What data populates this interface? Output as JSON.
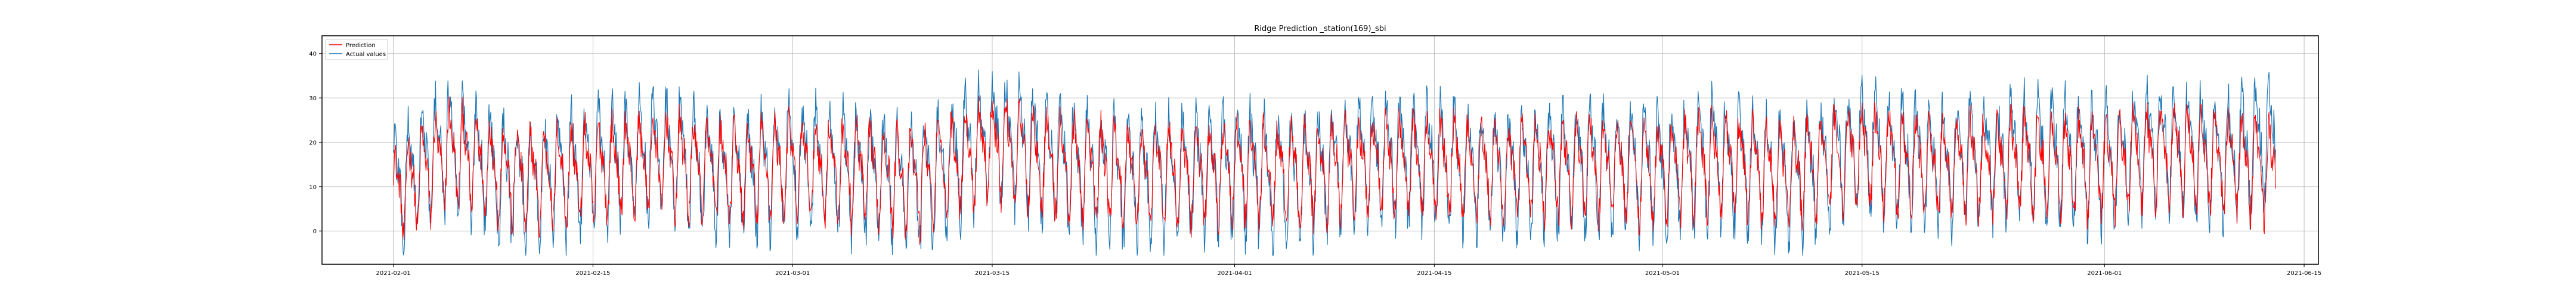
{
  "chart_data": {
    "type": "line",
    "title": "Ridge Prediction _station(169)_sbi",
    "xlabel": "",
    "ylabel": "",
    "x_range": [
      "2021-01-27",
      "2021-06-16"
    ],
    "ylim": [
      -7.5,
      44
    ],
    "x_ticks": [
      "2021-02-01",
      "2021-02-15",
      "2021-03-01",
      "2021-03-15",
      "2021-04-01",
      "2021-04-15",
      "2021-05-01",
      "2021-05-15",
      "2021-06-01",
      "2021-06-15"
    ],
    "y_ticks": [
      0,
      10,
      20,
      30,
      40
    ],
    "grid": true,
    "legend_position": "top-left",
    "series": [
      {
        "name": "Prediction",
        "color": "#ff0000",
        "x": [
          "2021-02-01",
          "2021-02-05",
          "2021-02-10",
          "2021-02-15",
          "2021-02-20",
          "2021-02-25",
          "2021-03-01",
          "2021-03-05",
          "2021-03-10",
          "2021-03-15",
          "2021-03-20",
          "2021-03-25",
          "2021-04-01",
          "2021-04-05",
          "2021-04-10",
          "2021-04-15",
          "2021-04-20",
          "2021-04-25",
          "2021-05-01",
          "2021-05-05",
          "2021-05-10",
          "2021-05-15",
          "2021-05-20",
          "2021-05-25",
          "2021-06-01",
          "2021-06-05",
          "2021-06-10",
          "2021-06-13"
        ],
        "values": [
          8,
          18,
          12,
          14,
          16,
          13,
          15,
          14,
          12,
          20,
          15,
          13,
          14,
          13,
          15,
          16,
          14,
          15,
          14,
          16,
          13,
          18,
          15,
          16,
          15,
          18,
          16,
          14
        ]
      },
      {
        "name": "Actual values",
        "color": "#1f77b4",
        "x": [
          "2021-02-01",
          "2021-02-05",
          "2021-02-10",
          "2021-02-15",
          "2021-02-20",
          "2021-02-25",
          "2021-03-01",
          "2021-03-05",
          "2021-03-10",
          "2021-03-15",
          "2021-03-20",
          "2021-03-25",
          "2021-04-01",
          "2021-04-05",
          "2021-04-10",
          "2021-04-15",
          "2021-04-20",
          "2021-04-25",
          "2021-05-01",
          "2021-05-05",
          "2021-05-10",
          "2021-05-15",
          "2021-05-20",
          "2021-05-25",
          "2021-06-01",
          "2021-06-05",
          "2021-06-10",
          "2021-06-13"
        ],
        "values": [
          10,
          20,
          11,
          15,
          18,
          12,
          16,
          14,
          11,
          22,
          16,
          12,
          15,
          12,
          16,
          17,
          13,
          16,
          14,
          17,
          12,
          20,
          15,
          18,
          16,
          20,
          17,
          22
        ]
      }
    ]
  }
}
